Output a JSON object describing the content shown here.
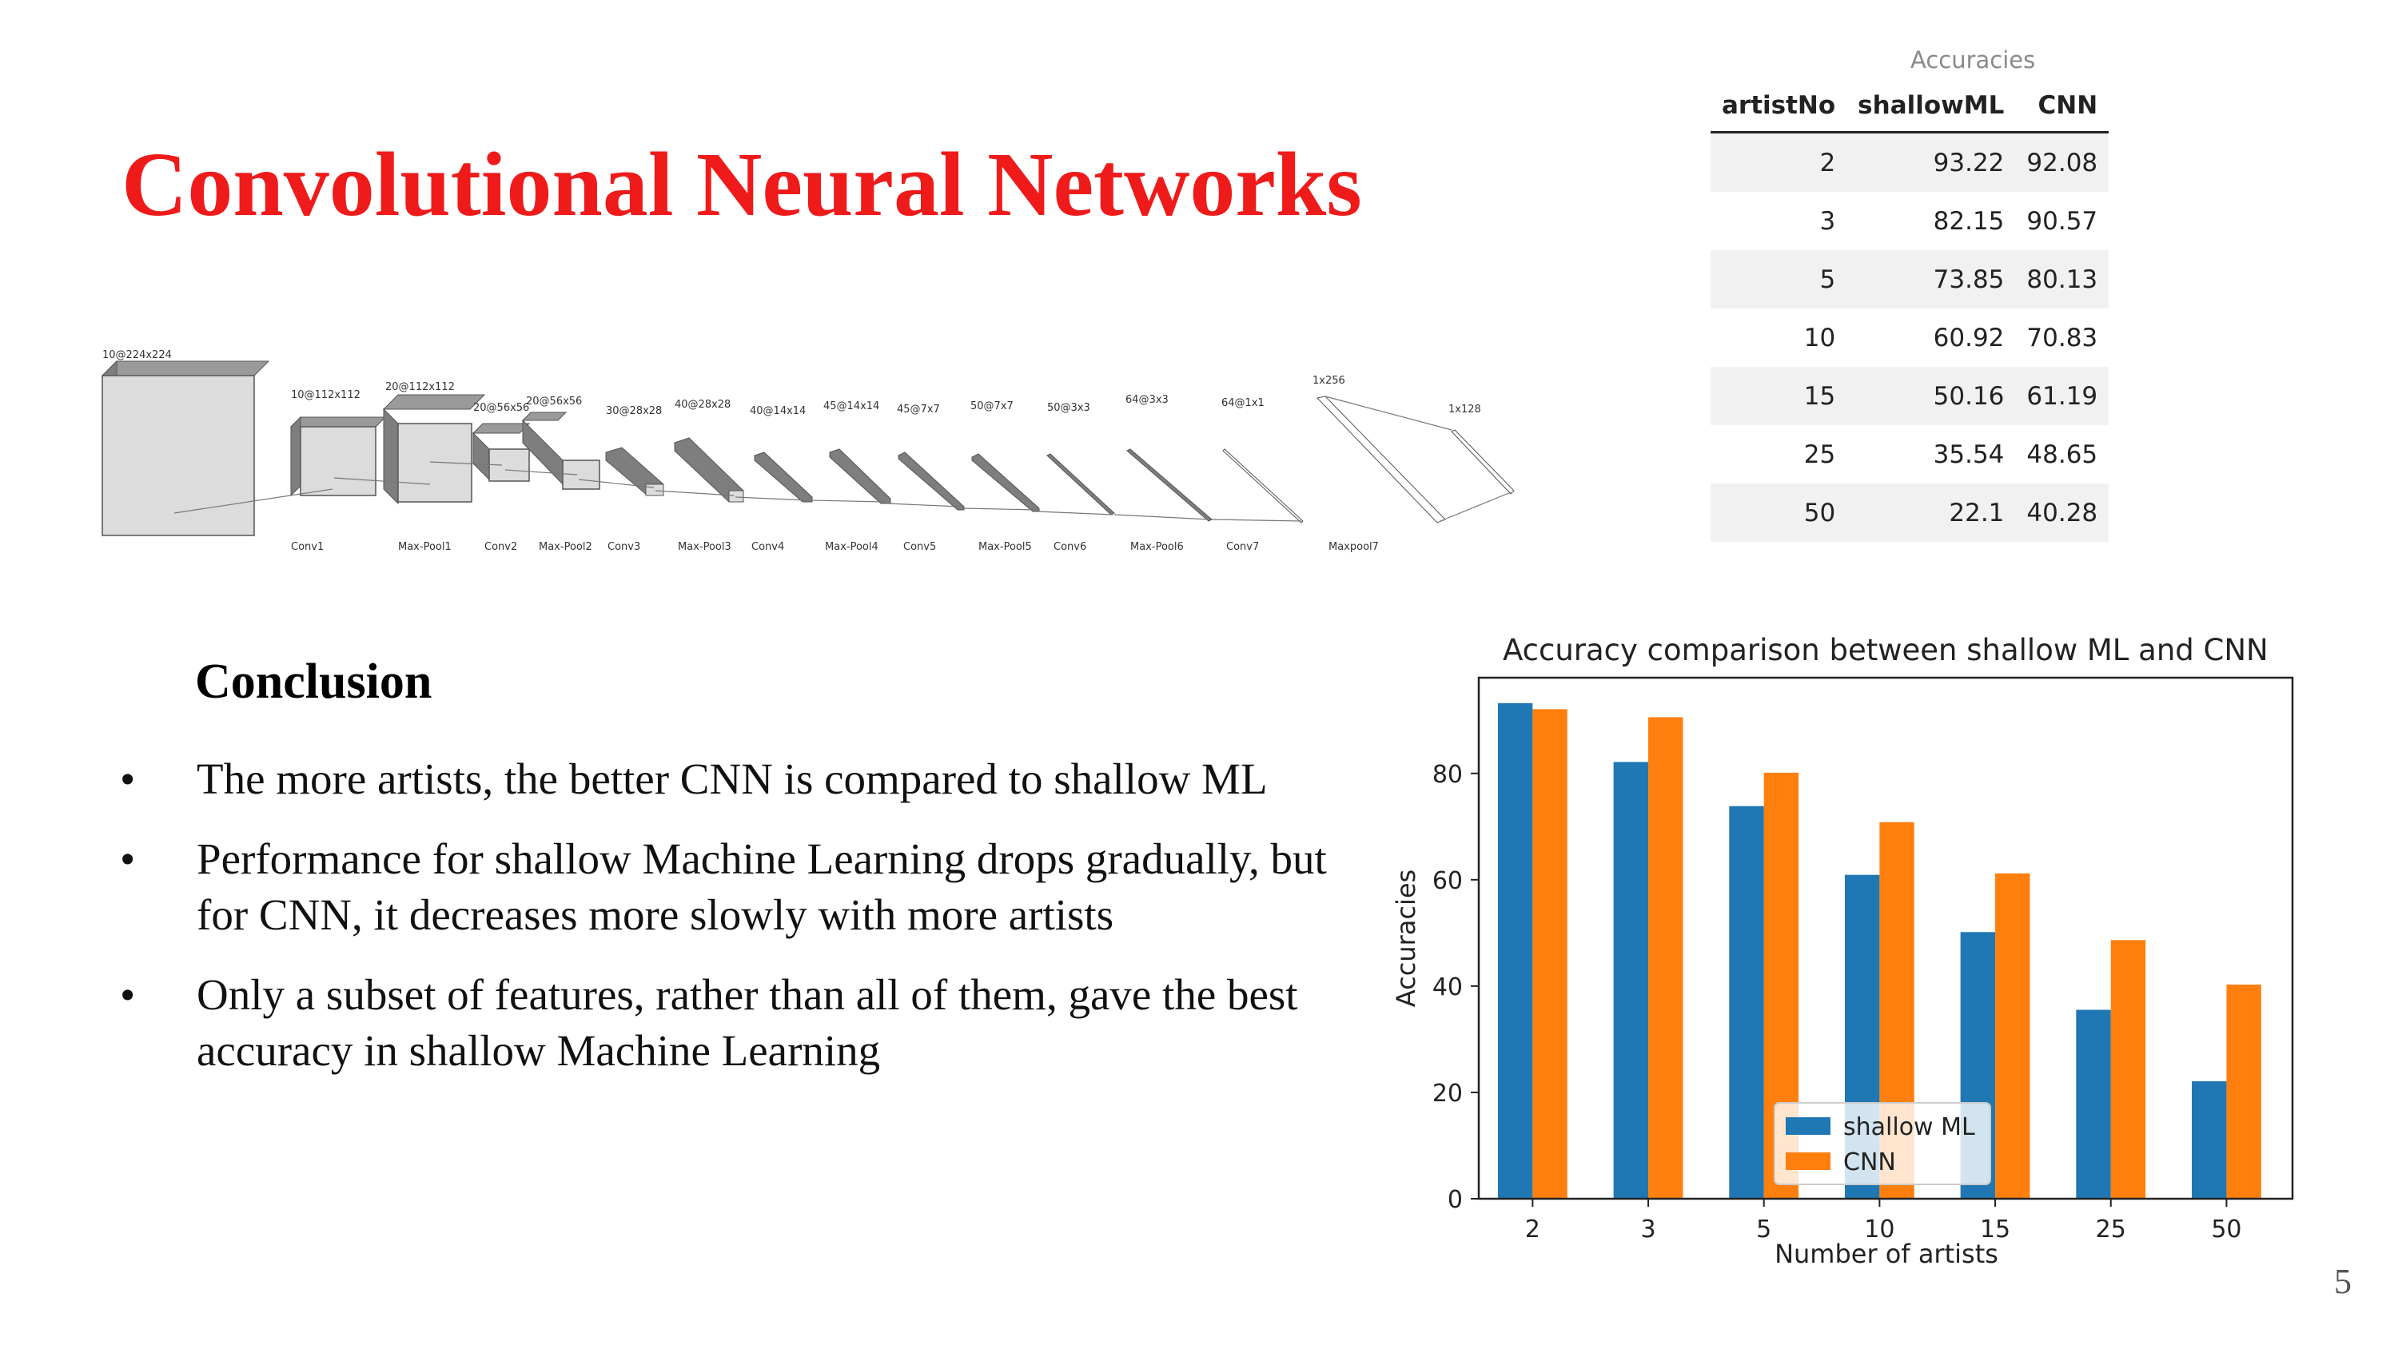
{
  "slide": {
    "title": "Convolutional Neural Networks",
    "page_number": "5"
  },
  "diagram": {
    "shape_labels": [
      "10@224x224",
      "10@112x112",
      "20@112x112",
      "20@56x56",
      "20@56x56",
      "30@28x28",
      "40@28x28",
      "40@14x14",
      "45@14x14",
      "45@7x7",
      "50@7x7",
      "50@3x3",
      "64@3x3",
      "64@1x1",
      "1x256",
      "1x128"
    ],
    "layer_labels": [
      "Conv1",
      "Max-Pool1",
      "Conv2",
      "Max-Pool2",
      "Conv3",
      "Max-Pool3",
      "Conv4",
      "Max-Pool4",
      "Conv5",
      "Max-Pool5",
      "Conv6",
      "Max-Pool6",
      "Conv7",
      "Maxpool7"
    ]
  },
  "table": {
    "caption": "Accuracies",
    "headers": [
      "artistNo",
      "shallowML",
      "CNN"
    ],
    "rows": [
      [
        "2",
        "93.22",
        "92.08"
      ],
      [
        "3",
        "82.15",
        "90.57"
      ],
      [
        "5",
        "73.85",
        "80.13"
      ],
      [
        "10",
        "60.92",
        "70.83"
      ],
      [
        "15",
        "50.16",
        "61.19"
      ],
      [
        "25",
        "35.54",
        "48.65"
      ],
      [
        "50",
        "22.1",
        "40.28"
      ]
    ]
  },
  "conclusion": {
    "heading": "Conclusion",
    "bullets": [
      "The more artists, the better CNN is compared to shallow ML",
      "Performance for shallow Machine Learning drops gradually, but for CNN, it decreases more slowly with more artists",
      "Only a subset of features, rather than all of them, gave the best accuracy in shallow Machine Learning"
    ],
    "bullet_symbol": "•"
  },
  "chart_data": {
    "type": "bar",
    "title": "Accuracy comparison between shallow ML and CNN",
    "xlabel": "Number of artists",
    "ylabel": "Accuracies",
    "categories": [
      "2",
      "3",
      "5",
      "10",
      "15",
      "25",
      "50"
    ],
    "series": [
      {
        "name": "shallow ML",
        "color": "#1f77b4",
        "values": [
          93.22,
          82.15,
          73.85,
          60.92,
          50.16,
          35.54,
          22.1
        ]
      },
      {
        "name": "CNN",
        "color": "#ff7f0e",
        "values": [
          92.08,
          90.57,
          80.13,
          70.83,
          61.19,
          48.65,
          40.28
        ]
      }
    ],
    "ylim": [
      0,
      98
    ],
    "yticks": [
      0,
      20,
      40,
      60,
      80
    ],
    "grid": false,
    "legend_position": "bottom-center"
  }
}
